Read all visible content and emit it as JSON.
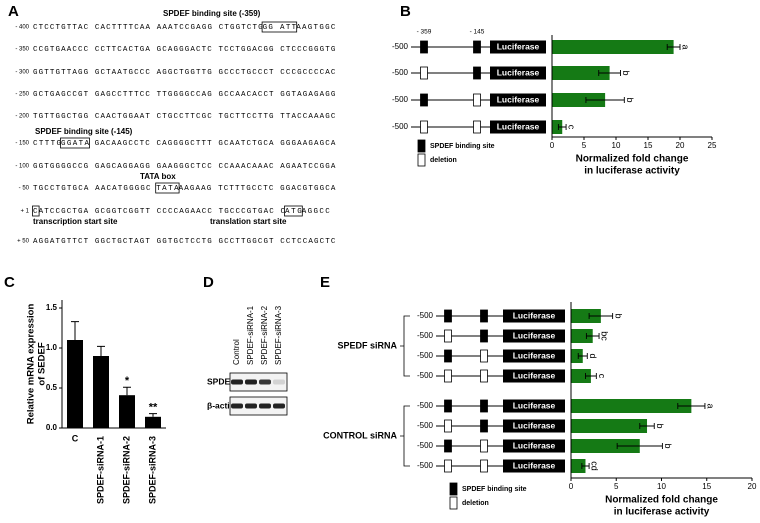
{
  "panel_labels": [
    "A",
    "B",
    "C",
    "D",
    "E"
  ],
  "sequence": {
    "site1_label": "SPDEF binding site (-359)",
    "site2_label": "SPDEF binding site (-145)",
    "tata_label": "TATA box",
    "tss_label": "transcription start site",
    "tls_label": "translation start site",
    "lines": [
      {
        "pos": "- 400",
        "segments": [
          "CTCCTGTTAC CACTTTTCAA AAATCCGAGG CTGGTCTG",
          {
            "boxed": "GG ATT"
          },
          "AAGTGGC"
        ]
      },
      {
        "pos": "- 350",
        "segments": [
          "CCGTGAACCC CCTTCACTGA GCAGGGACTC TCCTGGACGG CTCCCGGGTG"
        ]
      },
      {
        "pos": "- 300",
        "segments": [
          "GGTTGTTAGG GCTAATGCCC AGGCTGGTTG GCCCTGCCCT CCCGCCCCAC"
        ]
      },
      {
        "pos": "- 250",
        "segments": [
          "GCTGAGCCGT GAGCCTTTCC TTGGGGCCAG GCCAACACCT GGTAGAGAGG"
        ]
      },
      {
        "pos": "- 200",
        "segments": [
          "TGTTGGCTGG CAACTGGAAT CTGCCTTCGC TGCTTCCTTG TTACCAAAGC"
        ]
      },
      {
        "pos": "- 150",
        "segments": [
          "CTTTG",
          {
            "boxed": "GGATA"
          },
          " GACAAGCCTC CAGGGGCTTT GCAATCTGCA GGGAAGAGCA"
        ]
      },
      {
        "pos": "- 100",
        "segments": [
          "GGTGGGGCCG GAGCAGGAGG GAAGGGCTCC CCAAACAAAC AGAATCCGGA"
        ]
      },
      {
        "pos": "- 50",
        "segments": [
          "TGCCTGTGCA AACATGGGGC ",
          {
            "boxed": "TATA"
          },
          "AAGAAG TCTTTGCCTC GGACGTGGCA"
        ]
      },
      {
        "pos": "+ 1",
        "segments": [
          {
            "boxed": "C"
          },
          "ATCCGCTGA GCGGTCGGTT CCCCAGAACC TGCCCGTGAC C",
          {
            "boxed": "ATG"
          },
          "AGGCC"
        ]
      },
      {
        "pos": "+ 50",
        "segments": [
          "AGGATGTTCT GGCTGCTAGT GGTGCTCCTG GCCTTGGCGT CCTCCAGCTC"
        ]
      }
    ]
  },
  "chart_data": [
    {
      "type": "hbar",
      "site_labels": [
        "- 359",
        "- 145"
      ],
      "construct_label": "Luciferase",
      "color": "#157a15",
      "groups": [
        {
          "categories": [
            "-500",
            "-500",
            "-500",
            "-500"
          ],
          "sites": [
            [
              true,
              true
            ],
            [
              false,
              true
            ],
            [
              true,
              false
            ],
            [
              false,
              false
            ]
          ],
          "values": [
            19,
            9,
            8.3,
            1.6
          ],
          "errors": [
            1,
            1.7,
            3,
            0.6
          ],
          "letters": [
            "a",
            "b",
            "b",
            "c"
          ]
        }
      ],
      "xlim": [
        0,
        25
      ],
      "xticks": [
        0,
        5,
        10,
        15,
        20,
        25
      ],
      "xlabel": [
        "Normalized fold change",
        "in luciferase activity"
      ],
      "legend": [
        {
          "label": "SPDEF binding site",
          "filled": true
        },
        {
          "label": "deletion",
          "filled": false
        }
      ]
    },
    {
      "type": "vbar",
      "categories": [
        "C",
        "SPDEF-siRNA-1",
        "SPDEF-siRNA-2",
        "SPDEF-siRNA-3"
      ],
      "values": [
        1.1,
        0.9,
        0.41,
        0.14
      ],
      "errors": [
        0.23,
        0.12,
        0.1,
        0.04
      ],
      "significance": [
        null,
        null,
        "*",
        "**"
      ],
      "color": "#000000",
      "ylim": [
        0,
        1.6
      ],
      "yticks": [
        {
          "value": 0,
          "label": "0.0"
        },
        {
          "value": 0.5,
          "label": "0.5"
        },
        {
          "value": 1,
          "label": "1.0"
        },
        {
          "value": 1.5,
          "label": "1.5"
        }
      ],
      "ylabel": [
        "Relative mRNA expression",
        "of SEDEF"
      ]
    },
    {
      "type": "hbar",
      "construct_label": "Luciferase",
      "color": "#157a15",
      "groups": [
        {
          "name": "SPEDF siRNA",
          "categories": [
            "-500",
            "-500",
            "-500",
            "-500"
          ],
          "sites": [
            [
              true,
              true
            ],
            [
              false,
              true
            ],
            [
              true,
              false
            ],
            [
              false,
              false
            ]
          ],
          "values": [
            3.3,
            2.4,
            1.3,
            2.2
          ],
          "errors": [
            1.3,
            0.7,
            0.5,
            0.6
          ],
          "letters": [
            "b",
            "bc",
            "d",
            "c"
          ]
        },
        {
          "name": "CONTROL siRNA",
          "categories": [
            "-500",
            "-500",
            "-500",
            "-500"
          ],
          "sites": [
            [
              true,
              true
            ],
            [
              false,
              true
            ],
            [
              true,
              false
            ],
            [
              false,
              false
            ]
          ],
          "values": [
            13.3,
            8.4,
            7.6,
            1.6
          ],
          "errors": [
            1.5,
            0.8,
            2.5,
            0.4
          ],
          "letters": [
            "a",
            "b",
            "b",
            "cd"
          ]
        }
      ],
      "xlim": [
        0,
        20
      ],
      "xticks": [
        0,
        5,
        10,
        15,
        20
      ],
      "xlabel": [
        "Normalized fold change",
        "in luciferase activity"
      ],
      "legend": [
        {
          "label": "SPDEF binding site",
          "filled": true
        },
        {
          "label": "deletion",
          "filled": false
        }
      ]
    }
  ],
  "blot": {
    "lanes": [
      "Control",
      "SPDEF-siRNA-1",
      "SPDEF-siRNA-2",
      "SPDEF-siRNA-3"
    ],
    "rows": [
      "SPDEF",
      "β-actin"
    ]
  }
}
